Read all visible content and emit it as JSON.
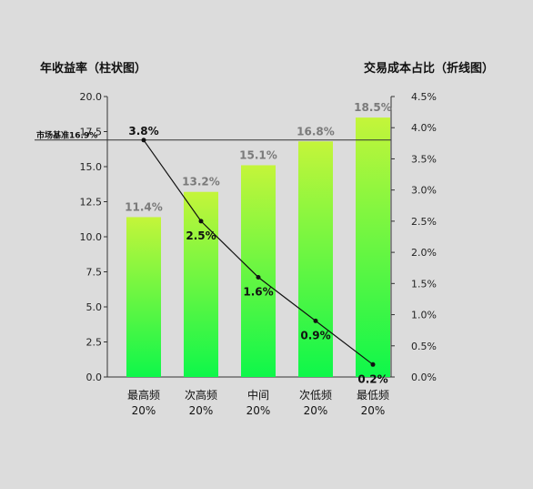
{
  "chart_data": {
    "type": "bar",
    "title": "",
    "categories": [
      [
        "最高频",
        "20%"
      ],
      [
        "次高频",
        "20%"
      ],
      [
        "中间",
        "20%"
      ],
      [
        "次低频",
        "20%"
      ],
      [
        "最低频",
        "20%"
      ]
    ],
    "left_axis": {
      "label": "年收益率（柱状图）",
      "ylim": [
        0,
        20
      ],
      "ticks": [
        0,
        2.5,
        5,
        7.5,
        10,
        12.5,
        15,
        17.5,
        20
      ],
      "tick_format": "0.0"
    },
    "right_axis": {
      "label": "交易成本占比（折线图）",
      "ylim": [
        0,
        4.5
      ],
      "ticks": [
        0,
        0.5,
        1,
        1.5,
        2,
        2.5,
        3,
        3.5,
        4,
        4.5
      ],
      "tick_suffix": "%"
    },
    "series": [
      {
        "type": "bar",
        "axis": "left",
        "values": [
          11.4,
          13.2,
          15.1,
          16.8,
          18.5
        ],
        "labels": [
          "11.4%",
          "13.2%",
          "15.1%",
          "16.8%",
          "18.5%"
        ]
      },
      {
        "type": "line",
        "axis": "right",
        "values": [
          3.8,
          2.5,
          1.6,
          0.9,
          0.2
        ],
        "labels": [
          "3.8%",
          "2.5%",
          "1.6%",
          "0.9%",
          "0.2%"
        ]
      }
    ],
    "reference_line": {
      "label": "市场基准16.9%",
      "value": 16.9,
      "axis": "left"
    },
    "colors": {
      "bar_top": "#c4f53a",
      "bar_bottom": "#0ef74a",
      "line": "#111111",
      "background": "#dcdcdc"
    },
    "grid": false,
    "legend": "none"
  }
}
